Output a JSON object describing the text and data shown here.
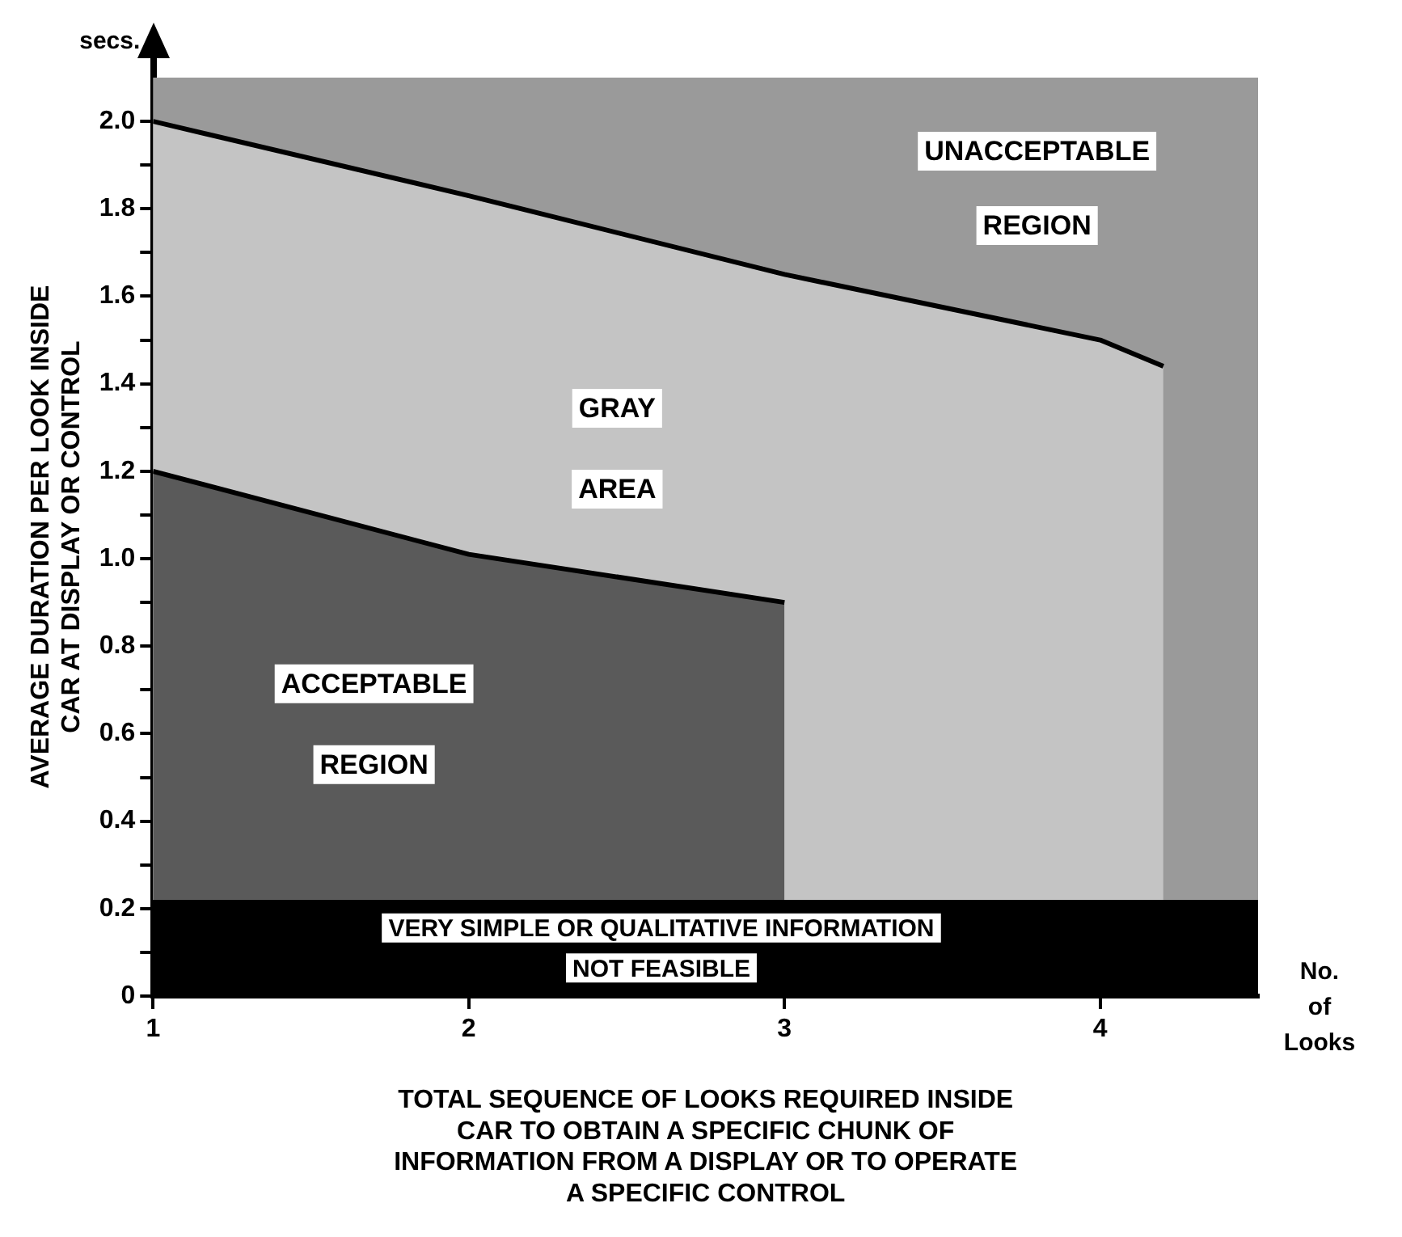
{
  "chart_data": {
    "type": "area",
    "xlabel": "TOTAL SEQUENCE OF LOOKS REQUIRED INSIDE CAR TO OBTAIN A SPECIFIC CHUNK OF INFORMATION FROM A DISPLAY OR TO OPERATE A SPECIFIC CONTROL",
    "ylabel": "AVERAGE DURATION PER LOOK INSIDE CAR AT DISPLAY OR CONTROL",
    "annotations": [
      "secs.",
      "No. of Looks"
    ],
    "series": [
      {
        "name": "ACCEPTABLE REGION",
        "color": "#5a5a5a",
        "x": [
          1,
          2,
          3
        ],
        "values": [
          1.2,
          1.01,
          0.9
        ]
      },
      {
        "name": "GRAY AREA",
        "color": "#c4c4c4",
        "x": [
          1,
          2,
          3,
          4,
          4.2
        ],
        "values": [
          2.0,
          1.83,
          1.65,
          1.5,
          1.44
        ]
      }
    ],
    "bands": [
      {
        "axis": "y",
        "from": 0.22,
        "to": 2.1,
        "label": "UNACCEPTABLE REGION",
        "color": "#9a9a9a"
      },
      {
        "axis": "y",
        "from": 0,
        "to": 0.22,
        "label": "VERY SIMPLE OR QUALITATIVE INFORMATION NOT FEASIBLE",
        "color": "#000000"
      }
    ],
    "xlim": [
      1,
      4.5
    ],
    "xticks": [
      1,
      2,
      3,
      4
    ],
    "ylim": [
      0,
      2.1
    ],
    "yticks": [
      0,
      {
        "value": 0.1,
        "label": null
      },
      0.2,
      {
        "value": 0.3,
        "label": null
      },
      0.4,
      {
        "value": 0.5,
        "label": null
      },
      0.6,
      {
        "value": 0.7,
        "label": null
      },
      0.8,
      {
        "value": 0.9,
        "label": null
      },
      {
        "value": 1,
        "label": "1.0"
      },
      {
        "value": 1.1,
        "label": null
      },
      1.2,
      {
        "value": 1.3,
        "label": null
      },
      1.4,
      {
        "value": 1.5,
        "label": null
      },
      1.6,
      {
        "value": 1.7,
        "label": null
      },
      1.8,
      {
        "value": 1.9,
        "label": null
      },
      {
        "value": 2,
        "label": "2.0"
      }
    ],
    "legend": false
  }
}
